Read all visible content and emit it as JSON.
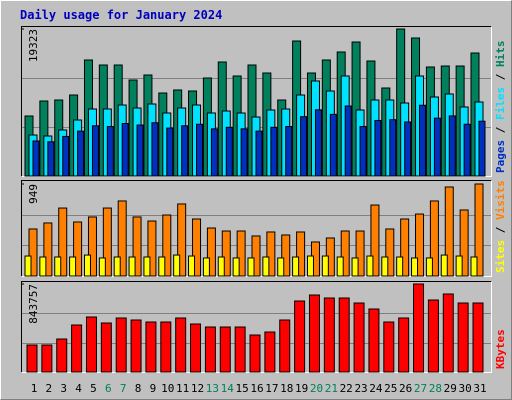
{
  "chart_data": [
    {
      "type": "bar",
      "title": "Daily usage for January 2024",
      "ylim": [
        0,
        19323
      ],
      "yticks": [
        19323
      ],
      "grid": true,
      "legend_separator": " / ",
      "series": [
        {
          "name": "Hits",
          "color": "#00805c",
          "values": [
            7887,
            9859,
            9990,
            10647,
            15248,
            14591,
            14591,
            12619,
            13276,
            10910,
            11305,
            11173,
            12882,
            14985,
            13145,
            14591,
            13539,
            9990,
            17746,
            13539,
            15248,
            16300,
            17614,
            15117,
            11568,
            19323,
            18140,
            14328,
            14459,
            14459,
            16168
          ]
        },
        {
          "name": "Files",
          "color": "#00e0ff",
          "values": [
            5389,
            5258,
            6047,
            7361,
            8807,
            8807,
            9333,
            8938,
            9464,
            8281,
            8938,
            9333,
            8281,
            8544,
            8281,
            7756,
            8676,
            8807,
            10647,
            12488,
            11173,
            13145,
            8676,
            9990,
            9990,
            9596,
            13145,
            10385,
            10779,
            9070,
            9727
          ]
        },
        {
          "name": "Pages",
          "color": "#0030c0",
          "values": [
            4600,
            4500,
            5200,
            5900,
            6600,
            6500,
            6900,
            6700,
            7000,
            6300,
            6600,
            6800,
            6200,
            6400,
            6200,
            5900,
            6400,
            6500,
            7800,
            8700,
            8100,
            9200,
            6500,
            7300,
            7400,
            7100,
            9300,
            7600,
            7900,
            6800,
            7200
          ]
        }
      ]
    },
    {
      "type": "bar",
      "ylim": [
        0,
        949
      ],
      "yticks": [
        949
      ],
      "grid": true,
      "legend_separator": " / ",
      "series": [
        {
          "name": "Visits",
          "color": "#ff8000",
          "values": [
            485,
            547,
            701,
            557,
            609,
            701,
            774,
            609,
            567,
            629,
            743,
            588,
            495,
            464,
            464,
            413,
            454,
            423,
            454,
            351,
            392,
            464,
            464,
            732,
            485,
            588,
            639,
            774,
            918,
            681,
            949
          ]
        },
        {
          "name": "Sites",
          "color": "#ffff00",
          "values": [
            206,
            196,
            196,
            196,
            216,
            186,
            196,
            196,
            196,
            196,
            216,
            206,
            186,
            196,
            186,
            186,
            196,
            186,
            196,
            206,
            206,
            196,
            186,
            206,
            196,
            196,
            186,
            186,
            216,
            206,
            196
          ]
        }
      ]
    },
    {
      "type": "bar",
      "ylim": [
        0,
        843757
      ],
      "yticks": [
        843757
      ],
      "grid": true,
      "categories": [
        "1",
        "2",
        "3",
        "4",
        "5",
        "6",
        "7",
        "8",
        "9",
        "10",
        "11",
        "12",
        "13",
        "14",
        "15",
        "16",
        "17",
        "18",
        "19",
        "20",
        "21",
        "22",
        "23",
        "24",
        "25",
        "26",
        "27",
        "28",
        "29",
        "30",
        "31"
      ],
      "category_colors": [
        "#000000",
        "#000000",
        "#000000",
        "#000000",
        "#000000",
        "#00805c",
        "#00805c",
        "#000000",
        "#000000",
        "#000000",
        "#000000",
        "#000000",
        "#00805c",
        "#00805c",
        "#000000",
        "#000000",
        "#000000",
        "#000000",
        "#000000",
        "#00805c",
        "#00805c",
        "#000000",
        "#000000",
        "#000000",
        "#000000",
        "#000000",
        "#00805c",
        "#00805c",
        "#000000",
        "#000000",
        "#000000"
      ],
      "series": [
        {
          "name": "KBytes",
          "color": "#ff0000",
          "values": [
            258880,
            258880,
            316409,
            450637,
            527348,
            469813,
            517760,
            498584,
            479385,
            479385,
            517760,
            460231,
            431450,
            431450,
            431450,
            354750,
            383526,
            498584,
            680757,
            738287,
            709523,
            709523,
            661581,
            604054,
            479385,
            517760,
            843757,
            690346,
            747876,
            661581,
            661581
          ]
        }
      ]
    }
  ]
}
